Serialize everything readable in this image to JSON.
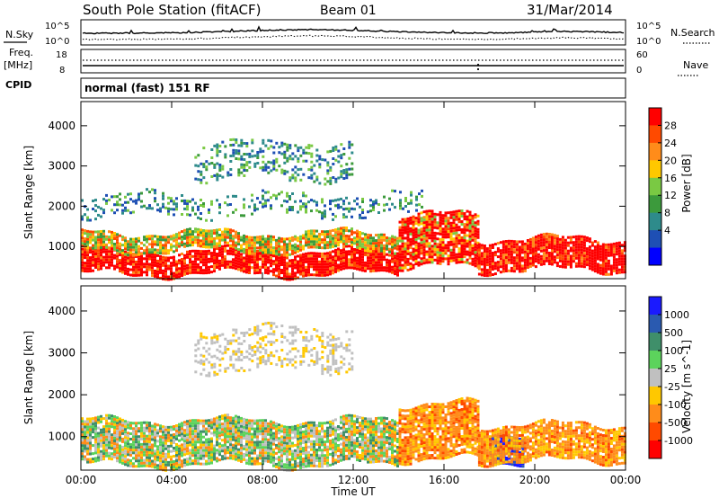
{
  "header": {
    "station": "South Pole Station (fitACF)",
    "beam": "Beam 01",
    "date": "31/Mar/2014"
  },
  "noise_panel": {
    "left_label": "N.Sky",
    "right_label": "N.Search",
    "left_ticks": [
      "10^5",
      "10^0"
    ],
    "right_ticks": [
      "10^5",
      "10^0"
    ]
  },
  "freq_panel": {
    "left_label_1": "Freq.",
    "left_label_2": "[MHz]",
    "right_label": "Nave",
    "left_ticks": [
      "18",
      "8"
    ],
    "right_ticks": [
      "60",
      "0"
    ]
  },
  "cpid": {
    "label": "CPID",
    "value": "normal (fast) 151 RF"
  },
  "power_colorbar": {
    "title": "Power [dB]",
    "ticks": [
      "28",
      "24",
      "20",
      "16",
      "12",
      "8",
      "4"
    ],
    "colors": [
      "#ff0000",
      "#ff4a00",
      "#ff8c1a",
      "#ffc800",
      "#7ac943",
      "#3c9a3c",
      "#2e8b8b",
      "#1e4fb4",
      "#0000ff"
    ]
  },
  "velocity_colorbar": {
    "title": "Velocity [m s^-1]",
    "ticks": [
      "1000",
      "500",
      "100",
      "25",
      "-25",
      "-100",
      "-500",
      "-1000"
    ],
    "colors": [
      "#1a1aff",
      "#2a5ab0",
      "#3f8f6a",
      "#5cd35c",
      "#c0c0c0",
      "#ffc800",
      "#ff8c1a",
      "#ff4a00",
      "#ff0000"
    ]
  },
  "chart_data": [
    {
      "type": "heatmap",
      "name": "power",
      "ylabel": "Slant Range [km]",
      "ylim": [
        200,
        4600
      ],
      "yticks": [
        "1000",
        "2000",
        "3000",
        "4000"
      ],
      "xlim": [
        0,
        24
      ],
      "xticks": [
        "00:00",
        "04:00",
        "08:00",
        "12:00",
        "16:00",
        "20:00",
        "00:00"
      ],
      "bands": [
        {
          "t0": 0,
          "t1": 14,
          "r0": 350,
          "r1": 900,
          "level": "high"
        },
        {
          "t0": 0,
          "t1": 14,
          "r0": 900,
          "r1": 1350,
          "level": "mid"
        },
        {
          "t0": 14,
          "t1": 17.5,
          "r0": 500,
          "r1": 1800,
          "level": "mixed"
        },
        {
          "t0": 17.5,
          "t1": 24,
          "r0": 400,
          "r1": 1200,
          "level": "high"
        },
        {
          "t0": 0,
          "t1": 15,
          "r0": 1800,
          "r1": 2300,
          "level": "low"
        },
        {
          "t0": 5,
          "t1": 12,
          "r0": 2700,
          "r1": 3600,
          "level": "low"
        }
      ]
    },
    {
      "type": "heatmap",
      "name": "velocity",
      "ylabel": "Slant Range [km]",
      "xlabel": "Time UT",
      "ylim": [
        200,
        4600
      ],
      "yticks": [
        "1000",
        "2000",
        "3000",
        "4000"
      ],
      "xlim": [
        0,
        24
      ],
      "xticks": [
        "00:00",
        "04:00",
        "08:00",
        "12:00",
        "16:00",
        "20:00",
        "00:00"
      ],
      "bands": [
        {
          "t0": 0,
          "t1": 14,
          "r0": 350,
          "r1": 1400,
          "level": "mixed"
        },
        {
          "t0": 14,
          "t1": 17.5,
          "r0": 500,
          "r1": 1800,
          "level": "negative"
        },
        {
          "t0": 18,
          "t1": 19.5,
          "r0": 400,
          "r1": 1100,
          "level": "positive"
        },
        {
          "t0": 17.5,
          "t1": 24,
          "r0": 400,
          "r1": 1300,
          "level": "negative"
        },
        {
          "t0": 5,
          "t1": 12,
          "r0": 2600,
          "r1": 3600,
          "level": "near-zero"
        }
      ]
    }
  ]
}
